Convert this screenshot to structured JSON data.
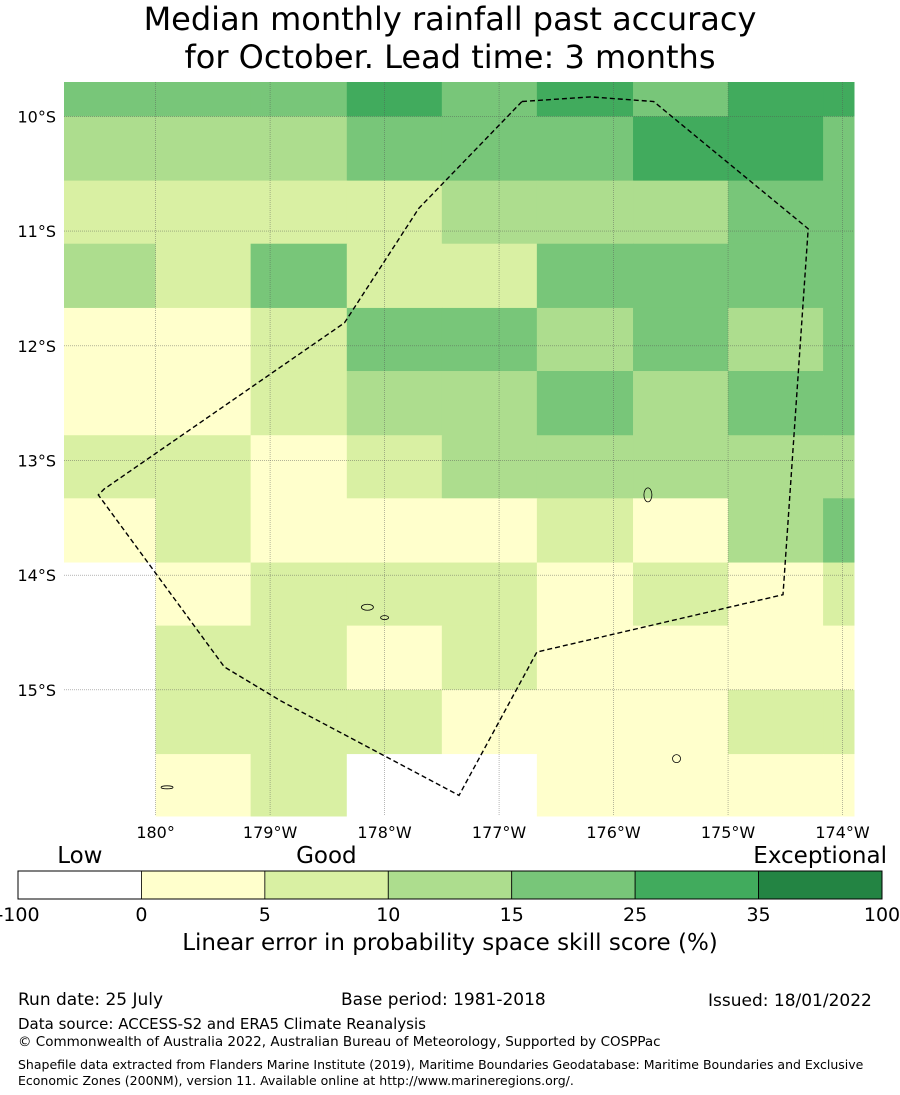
{
  "title_line1": "Median monthly rainfall past accuracy",
  "title_line2": "for October. Lead time: 3 months",
  "map": {
    "lon_min": 179.2,
    "lon_max": 186.1,
    "lat_top": -9.7,
    "lat_bottom": -16.1,
    "x_ticks": [
      {
        "lon": 180,
        "label": "180°"
      },
      {
        "lon": 181,
        "label": "179°W"
      },
      {
        "lon": 182,
        "label": "178°W"
      },
      {
        "lon": 183,
        "label": "177°W"
      },
      {
        "lon": 184,
        "label": "176°W"
      },
      {
        "lon": 185,
        "label": "175°W"
      },
      {
        "lon": 186,
        "label": "174°W"
      }
    ],
    "y_ticks": [
      {
        "lat": -10,
        "label": "10°S"
      },
      {
        "lat": -11,
        "label": "11°S"
      },
      {
        "lat": -12,
        "label": "12°S"
      },
      {
        "lat": -13,
        "label": "13°S"
      },
      {
        "lat": -14,
        "label": "14°S"
      },
      {
        "lat": -15,
        "label": "15°S"
      }
    ],
    "grid_lon_edges": [
      179.2,
      180.0,
      180.83,
      181.67,
      182.5,
      183.33,
      184.17,
      185.0,
      185.83,
      186.1
    ],
    "grid_lat_edges": [
      -9.7,
      -10.0,
      -10.56,
      -11.11,
      -11.67,
      -12.22,
      -12.78,
      -13.33,
      -13.89,
      -14.44,
      -15.0,
      -15.56,
      -16.1
    ],
    "skill_grid": [
      [
        4,
        4,
        4,
        5,
        4,
        5,
        4,
        5,
        5
      ],
      [
        3,
        3,
        3,
        4,
        4,
        4,
        5,
        5,
        4
      ],
      [
        2,
        2,
        2,
        2,
        3,
        3,
        3,
        4,
        4
      ],
      [
        3,
        2,
        4,
        2,
        2,
        4,
        4,
        4,
        4
      ],
      [
        1,
        1,
        2,
        4,
        4,
        3,
        4,
        3,
        4
      ],
      [
        1,
        1,
        2,
        3,
        3,
        4,
        3,
        4,
        4
      ],
      [
        2,
        2,
        1,
        2,
        3,
        3,
        3,
        3,
        3
      ],
      [
        1,
        2,
        1,
        1,
        1,
        2,
        1,
        3,
        4
      ],
      [
        0,
        1,
        2,
        2,
        2,
        1,
        2,
        1,
        2
      ],
      [
        0,
        2,
        2,
        1,
        2,
        1,
        1,
        1,
        1
      ],
      [
        0,
        2,
        2,
        2,
        1,
        1,
        1,
        2,
        2
      ],
      [
        0,
        1,
        2,
        0,
        0,
        1,
        1,
        1,
        1
      ]
    ],
    "boundary_lonlat": [
      [
        183.2,
        -9.87
      ],
      [
        183.8,
        -9.83
      ],
      [
        184.35,
        -9.87
      ],
      [
        185.7,
        -10.98
      ],
      [
        185.48,
        -14.17
      ],
      [
        183.33,
        -14.67
      ],
      [
        182.65,
        -15.92
      ],
      [
        181.1,
        -15.1
      ],
      [
        180.6,
        -14.8
      ],
      [
        179.5,
        -13.3
      ],
      [
        179.55,
        -13.25
      ],
      [
        181.65,
        -11.8
      ],
      [
        182.3,
        -10.8
      ],
      [
        183.2,
        -9.87
      ]
    ],
    "islands": [
      {
        "lon": 184.3,
        "lat": -13.3,
        "rx": 4,
        "ry": 7
      },
      {
        "lon": 181.85,
        "lat": -14.28,
        "rx": 6,
        "ry": 3
      },
      {
        "lon": 182.0,
        "lat": -14.37,
        "rx": 4,
        "ry": 2
      },
      {
        "lon": 184.55,
        "lat": -15.6,
        "rx": 4,
        "ry": 4
      },
      {
        "lon": 180.1,
        "lat": -15.85,
        "rx": 6,
        "ry": 1.5
      }
    ]
  },
  "legend": {
    "categories": [
      {
        "label": "Low",
        "at_level": 0
      },
      {
        "label": "Good",
        "at_level": 2
      },
      {
        "label": "Exceptional",
        "at_level": 6
      }
    ],
    "levels": [
      {
        "range": [
          -100,
          0
        ],
        "color": "#ffffff"
      },
      {
        "range": [
          0,
          5
        ],
        "color": "#ffffcc"
      },
      {
        "range": [
          5,
          10
        ],
        "color": "#d9f0a3"
      },
      {
        "range": [
          10,
          15
        ],
        "color": "#addd8e"
      },
      {
        "range": [
          15,
          25
        ],
        "color": "#78c679"
      },
      {
        "range": [
          25,
          35
        ],
        "color": "#41ab5d"
      },
      {
        "range": [
          35,
          100
        ],
        "color": "#238443"
      }
    ],
    "tick_labels": [
      "-100",
      "0",
      "5",
      "10",
      "15",
      "25",
      "35",
      "100"
    ],
    "title": "Linear error in probability space skill score (%)"
  },
  "footer": {
    "run_date": "Run date: 25 July",
    "base_period": "Base period: 1981-2018",
    "issued": "Issued: 18/01/2022",
    "data_source": "Data source: ACCESS-S2 and ERA5 Climate Reanalysis",
    "copyright": "© Commonwealth of Australia 2022, Australian Bureau of Meteorology, Supported by COSPPac",
    "shapefile": "Shapefile data extracted from Flanders Marine Institute (2019), Maritime Boundaries Geodatabase: Maritime Boundaries and Exclusive Economic Zones (200NM), version 11. Available online at http://www.marineregions.org/."
  }
}
